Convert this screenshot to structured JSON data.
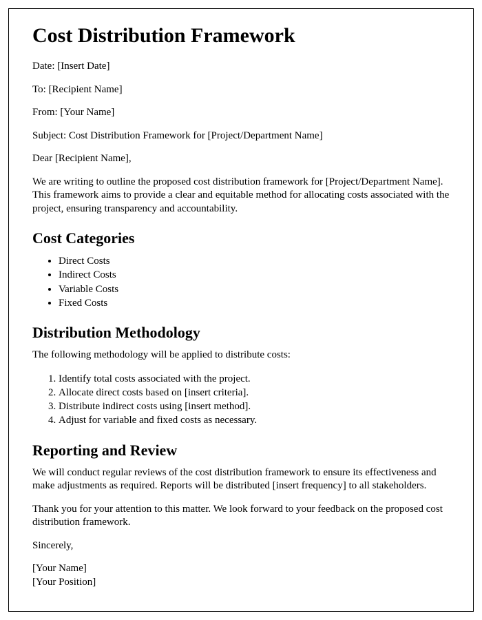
{
  "title": "Cost Distribution Framework",
  "meta": {
    "date_label": "Date: [Insert Date]",
    "to_label": "To: [Recipient Name]",
    "from_label": "From: [Your Name]",
    "subject_label": "Subject: Cost Distribution Framework for [Project/Department Name]"
  },
  "salutation": "Dear [Recipient Name],",
  "intro": "We are writing to outline the proposed cost distribution framework for [Project/Department Name]. This framework aims to provide a clear and equitable method for allocating costs associated with the project, ensuring transparency and accountability.",
  "section_cost_categories": {
    "heading": "Cost Categories",
    "items": [
      "Direct Costs",
      "Indirect Costs",
      "Variable Costs",
      "Fixed Costs"
    ]
  },
  "section_methodology": {
    "heading": "Distribution Methodology",
    "lead": "The following methodology will be applied to distribute costs:",
    "steps": [
      "Identify total costs associated with the project.",
      "Allocate direct costs based on [insert criteria].",
      "Distribute indirect costs using [insert method].",
      "Adjust for variable and fixed costs as necessary."
    ]
  },
  "section_reporting": {
    "heading": "Reporting and Review",
    "body": "We will conduct regular reviews of the cost distribution framework to ensure its effectiveness and make adjustments as required. Reports will be distributed [insert frequency] to all stakeholders."
  },
  "closing": "Thank you for your attention to this matter. We look forward to your feedback on the proposed cost distribution framework.",
  "signoff": "Sincerely,",
  "signature": {
    "name": "[Your Name]",
    "position": "[Your Position]"
  }
}
